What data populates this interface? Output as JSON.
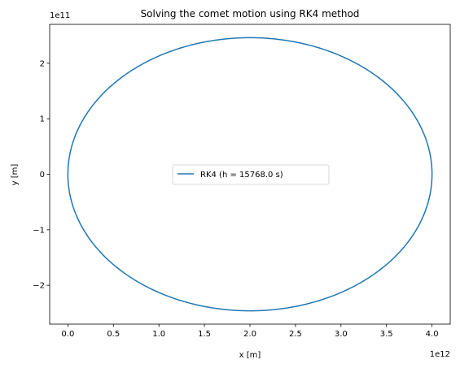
{
  "chart_data": {
    "type": "line",
    "title": "Solving the comet motion using RK4 method",
    "xlabel": "x [m]",
    "ylabel": "y [m]",
    "x_offset_label": "1e12",
    "y_offset_label": "1e11",
    "x_scale": 1000000000000.0,
    "y_scale": 100000000000.0,
    "xlim": [
      -200000000000.0,
      4200000000000.0
    ],
    "ylim": [
      -270000000000.0,
      270000000000.0
    ],
    "x_ticks": [
      0,
      500000000000.0,
      1000000000000.0,
      1500000000000.0,
      2000000000000.0,
      2500000000000.0,
      3000000000000.0,
      3500000000000.0,
      4000000000000.0
    ],
    "x_tick_labels": [
      "0.0",
      "0.5",
      "1.0",
      "1.5",
      "2.0",
      "2.5",
      "3.0",
      "3.5",
      "4.0"
    ],
    "y_ticks": [
      -200000000000.0,
      -100000000000.0,
      0,
      100000000000.0,
      200000000000.0
    ],
    "y_tick_labels": [
      "−2",
      "−1",
      "0",
      "1",
      "2"
    ],
    "grid": false,
    "legend_position": "center",
    "series": [
      {
        "name": "RK4 (h = 15768.0 s)",
        "color": "#1f77b4",
        "shape": "ellipse",
        "center": [
          2000000000000.0,
          0
        ],
        "semi_major_x": 2000000000000.0,
        "semi_minor_y": 246000000000.0
      }
    ]
  }
}
